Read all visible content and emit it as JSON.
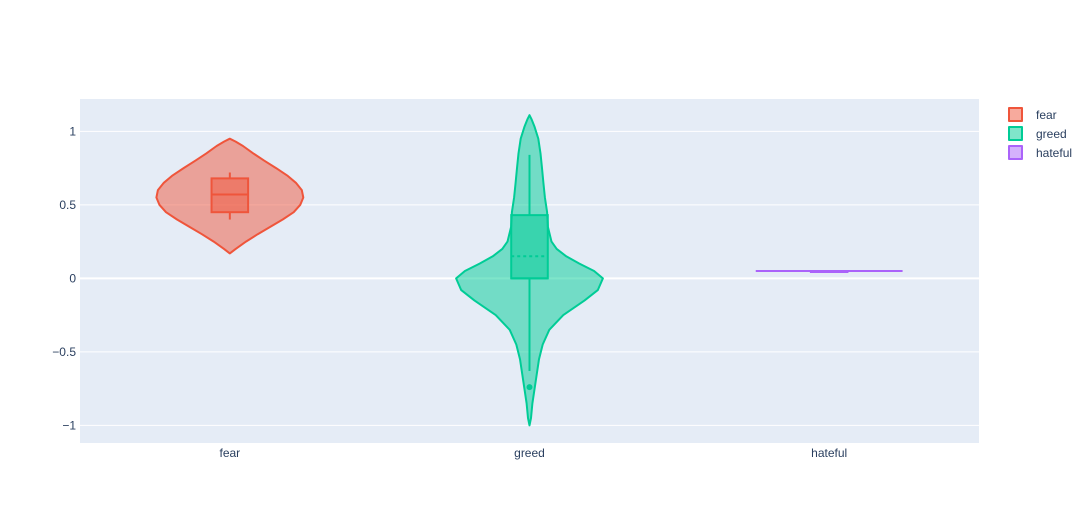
{
  "chart_data": {
    "type": "violin",
    "title": "",
    "xlabel": "",
    "ylabel": "",
    "categories": [
      "fear",
      "greed",
      "hateful"
    ],
    "ylim": [
      -1.12,
      1.22
    ],
    "yticks": [
      {
        "value": 1,
        "label": "1"
      },
      {
        "value": 0.5,
        "label": "0.5"
      },
      {
        "value": 0,
        "label": "0"
      },
      {
        "value": -0.5,
        "label": "−0.5"
      },
      {
        "value": -1,
        "label": "−1"
      }
    ],
    "grid": true,
    "legend_position": "top-right",
    "series": [
      {
        "name": "fear",
        "color": "#EF553B",
        "fill": "rgba(239,85,59,0.5)",
        "box": {
          "q1": 0.45,
          "median": 0.57,
          "q3": 0.68,
          "lowerfence": 0.4,
          "upperfence": 0.72
        },
        "density": [
          [
            0.17,
            0.0
          ],
          [
            0.2,
            0.08
          ],
          [
            0.25,
            0.22
          ],
          [
            0.3,
            0.38
          ],
          [
            0.35,
            0.55
          ],
          [
            0.4,
            0.72
          ],
          [
            0.45,
            0.87
          ],
          [
            0.5,
            0.96
          ],
          [
            0.55,
            1.0
          ],
          [
            0.6,
            0.98
          ],
          [
            0.65,
            0.9
          ],
          [
            0.7,
            0.78
          ],
          [
            0.75,
            0.63
          ],
          [
            0.8,
            0.47
          ],
          [
            0.85,
            0.32
          ],
          [
            0.9,
            0.18
          ],
          [
            0.93,
            0.08
          ],
          [
            0.95,
            0.0
          ]
        ],
        "outliers": []
      },
      {
        "name": "greed",
        "color": "#00CC96",
        "fill": "rgba(0,204,150,0.5)",
        "box": {
          "q1": 0.0,
          "median": 0.0,
          "q3": 0.43,
          "mean": 0.15,
          "lowerfence": -0.63,
          "upperfence": 0.84
        },
        "density": [
          [
            -1.0,
            0.0
          ],
          [
            -0.95,
            0.02
          ],
          [
            -0.85,
            0.04
          ],
          [
            -0.75,
            0.07
          ],
          [
            -0.65,
            0.1
          ],
          [
            -0.55,
            0.13
          ],
          [
            -0.45,
            0.18
          ],
          [
            -0.35,
            0.27
          ],
          [
            -0.25,
            0.46
          ],
          [
            -0.15,
            0.75
          ],
          [
            -0.08,
            0.93
          ],
          [
            0.0,
            1.0
          ],
          [
            0.05,
            0.88
          ],
          [
            0.1,
            0.68
          ],
          [
            0.15,
            0.5
          ],
          [
            0.2,
            0.37
          ],
          [
            0.25,
            0.3
          ],
          [
            0.35,
            0.25
          ],
          [
            0.45,
            0.24
          ],
          [
            0.55,
            0.21
          ],
          [
            0.65,
            0.19
          ],
          [
            0.75,
            0.17
          ],
          [
            0.85,
            0.15
          ],
          [
            0.95,
            0.12
          ],
          [
            1.03,
            0.07
          ],
          [
            1.08,
            0.03
          ],
          [
            1.11,
            0.0
          ]
        ],
        "outliers": [
          -0.74
        ]
      },
      {
        "name": "hateful",
        "color": "#AB63FA",
        "fill": "rgba(171,99,250,0.5)",
        "constant": 0.05,
        "box": {
          "q1": 0.05,
          "median": 0.05,
          "q3": 0.05,
          "lowerfence": 0.05,
          "upperfence": 0.05
        },
        "density": [],
        "outliers": []
      }
    ]
  }
}
